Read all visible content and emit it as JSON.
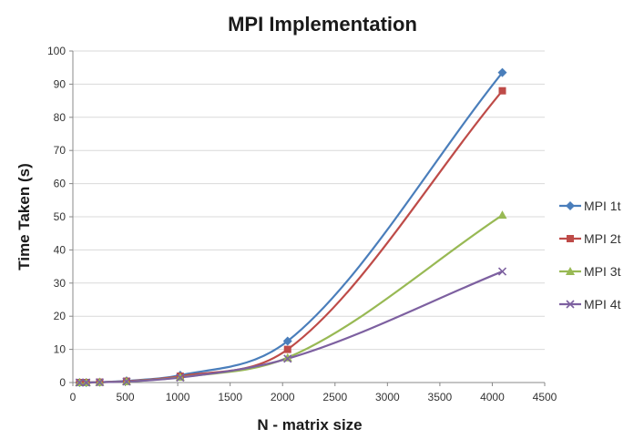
{
  "chart_data": {
    "type": "line",
    "title": "MPI Implementation",
    "xlabel": "N - matrix size",
    "ylabel": "Time Taken (s)",
    "xlim": [
      0,
      4500
    ],
    "ylim": [
      0,
      100
    ],
    "xticks": [
      0,
      500,
      1000,
      1500,
      2000,
      2500,
      3000,
      3500,
      4000,
      4500
    ],
    "yticks": [
      0,
      10,
      20,
      30,
      40,
      50,
      60,
      70,
      80,
      90,
      100
    ],
    "grid": true,
    "legend_position": "right",
    "smooth": true,
    "x": [
      64,
      128,
      256,
      512,
      1024,
      2048,
      4096
    ],
    "series": [
      {
        "name": "MPI 1t",
        "color": "#4a7ebb",
        "marker": "diamond",
        "values": [
          0.0,
          0.0,
          0.1,
          0.5,
          2.2,
          12.5,
          93.5
        ]
      },
      {
        "name": "MPI 2t",
        "color": "#be4b48",
        "marker": "square",
        "values": [
          0.0,
          0.0,
          0.1,
          0.4,
          1.9,
          10.0,
          88.0
        ]
      },
      {
        "name": "MPI 3t",
        "color": "#98b954",
        "marker": "triangle",
        "values": [
          0.0,
          0.0,
          0.1,
          0.3,
          1.6,
          7.5,
          50.5
        ]
      },
      {
        "name": "MPI 4t",
        "color": "#7d60a0",
        "marker": "x",
        "values": [
          0.0,
          0.0,
          0.1,
          0.3,
          1.5,
          7.2,
          33.5
        ]
      }
    ]
  }
}
